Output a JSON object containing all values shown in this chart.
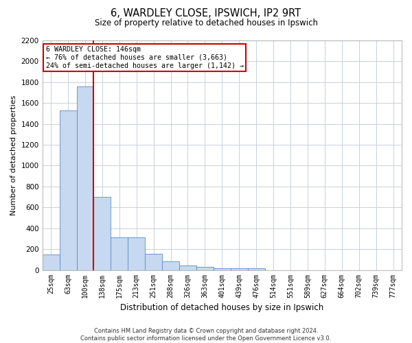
{
  "title1": "6, WARDLEY CLOSE, IPSWICH, IP2 9RT",
  "title2": "Size of property relative to detached houses in Ipswich",
  "xlabel": "Distribution of detached houses by size in Ipswich",
  "ylabel": "Number of detached properties",
  "categories": [
    "25sqm",
    "63sqm",
    "100sqm",
    "138sqm",
    "175sqm",
    "213sqm",
    "251sqm",
    "288sqm",
    "326sqm",
    "363sqm",
    "401sqm",
    "439sqm",
    "476sqm",
    "514sqm",
    "551sqm",
    "589sqm",
    "627sqm",
    "664sqm",
    "702sqm",
    "739sqm",
    "777sqm"
  ],
  "values": [
    150,
    1530,
    1760,
    700,
    310,
    310,
    155,
    80,
    45,
    27,
    20,
    20,
    14,
    0,
    0,
    0,
    0,
    0,
    0,
    0,
    0
  ],
  "bar_color": "#c6d9f0",
  "bar_edge_color": "#5a8ac6",
  "vline_color": "#cc0000",
  "vline_x": 2.5,
  "annotation_line1": "6 WARDLEY CLOSE: 146sqm",
  "annotation_line2": "← 76% of detached houses are smaller (3,663)",
  "annotation_line3": "24% of semi-detached houses are larger (1,142) →",
  "annotation_box_color": "#cc0000",
  "annotation_box_fill": "#ffffff",
  "ylim": [
    0,
    2200
  ],
  "yticks": [
    0,
    200,
    400,
    600,
    800,
    1000,
    1200,
    1400,
    1600,
    1800,
    2000,
    2200
  ],
  "footer1": "Contains HM Land Registry data © Crown copyright and database right 2024.",
  "footer2": "Contains public sector information licensed under the Open Government Licence v3.0.",
  "background_color": "#ffffff",
  "grid_color": "#c8d0dc"
}
